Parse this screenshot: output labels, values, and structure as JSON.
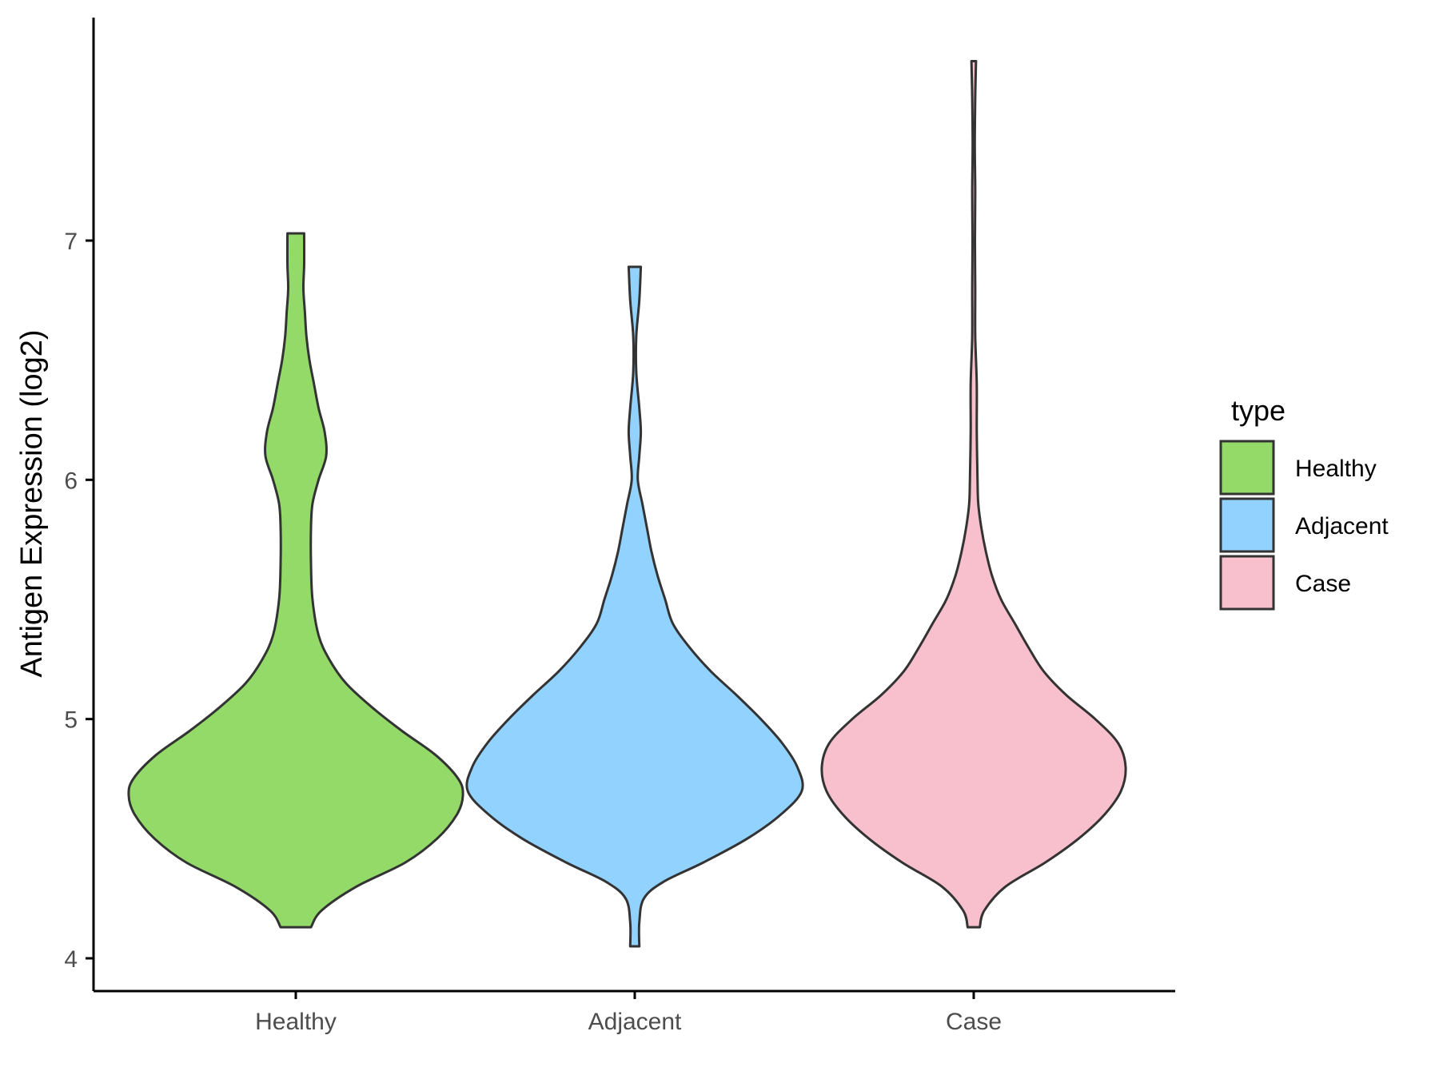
{
  "chart_data": {
    "type": "violin",
    "ylabel": "Antigen Expression (log2)",
    "xlabel": "",
    "ylim": [
      3.9,
      7.95
    ],
    "yticks": [
      4,
      5,
      6,
      7
    ],
    "categories": [
      "Healthy",
      "Adjacent",
      "Case"
    ],
    "legend": {
      "title": "type",
      "placement": "right",
      "entries": [
        "Healthy",
        "Adjacent",
        "Case"
      ]
    },
    "grid": false,
    "series": [
      {
        "name": "Healthy",
        "color": "#93DA69",
        "min": 4.13,
        "max": 7.03,
        "profile": [
          [
            4.13,
            0.1
          ],
          [
            4.2,
            0.17
          ],
          [
            4.3,
            0.4
          ],
          [
            4.4,
            0.72
          ],
          [
            4.5,
            0.93
          ],
          [
            4.6,
            1.06
          ],
          [
            4.68,
            1.1
          ],
          [
            4.75,
            1.07
          ],
          [
            4.85,
            0.92
          ],
          [
            4.95,
            0.7
          ],
          [
            5.05,
            0.5
          ],
          [
            5.15,
            0.33
          ],
          [
            5.25,
            0.22
          ],
          [
            5.35,
            0.15
          ],
          [
            5.5,
            0.11
          ],
          [
            5.65,
            0.1
          ],
          [
            5.8,
            0.1
          ],
          [
            5.9,
            0.11
          ],
          [
            6.0,
            0.15
          ],
          [
            6.1,
            0.2
          ],
          [
            6.2,
            0.19
          ],
          [
            6.3,
            0.15
          ],
          [
            6.4,
            0.12
          ],
          [
            6.5,
            0.09
          ],
          [
            6.6,
            0.07
          ],
          [
            6.7,
            0.06
          ],
          [
            6.8,
            0.05
          ],
          [
            6.9,
            0.055
          ],
          [
            7.03,
            0.055
          ]
        ]
      },
      {
        "name": "Adjacent",
        "color": "#92D2FE",
        "min": 4.05,
        "max": 6.89,
        "profile": [
          [
            4.05,
            0.03
          ],
          [
            4.15,
            0.03
          ],
          [
            4.25,
            0.06
          ],
          [
            4.32,
            0.19
          ],
          [
            4.4,
            0.45
          ],
          [
            4.5,
            0.74
          ],
          [
            4.6,
            0.96
          ],
          [
            4.7,
            1.1
          ],
          [
            4.8,
            1.07
          ],
          [
            4.9,
            0.97
          ],
          [
            5.0,
            0.83
          ],
          [
            5.1,
            0.67
          ],
          [
            5.2,
            0.5
          ],
          [
            5.3,
            0.36
          ],
          [
            5.4,
            0.25
          ],
          [
            5.5,
            0.2
          ],
          [
            5.6,
            0.15
          ],
          [
            5.7,
            0.11
          ],
          [
            5.8,
            0.08
          ],
          [
            5.9,
            0.05
          ],
          [
            6.0,
            0.02
          ],
          [
            6.1,
            0.03
          ],
          [
            6.2,
            0.04
          ],
          [
            6.3,
            0.03
          ],
          [
            6.45,
            0.01
          ],
          [
            6.6,
            0.01
          ],
          [
            6.75,
            0.03
          ],
          [
            6.89,
            0.04
          ]
        ]
      },
      {
        "name": "Case",
        "color": "#F7C0CC",
        "min": 4.13,
        "max": 7.75,
        "profile": [
          [
            4.13,
            0.04
          ],
          [
            4.2,
            0.07
          ],
          [
            4.3,
            0.21
          ],
          [
            4.4,
            0.47
          ],
          [
            4.5,
            0.69
          ],
          [
            4.6,
            0.86
          ],
          [
            4.7,
            0.97
          ],
          [
            4.8,
            1.0
          ],
          [
            4.9,
            0.95
          ],
          [
            5.0,
            0.8
          ],
          [
            5.1,
            0.61
          ],
          [
            5.2,
            0.46
          ],
          [
            5.3,
            0.36
          ],
          [
            5.4,
            0.27
          ],
          [
            5.5,
            0.18
          ],
          [
            5.6,
            0.12
          ],
          [
            5.7,
            0.08
          ],
          [
            5.8,
            0.05
          ],
          [
            5.9,
            0.03
          ],
          [
            6.0,
            0.025
          ],
          [
            6.2,
            0.02
          ],
          [
            6.4,
            0.02
          ],
          [
            6.6,
            0.01
          ],
          [
            6.8,
            0.01
          ],
          [
            7.0,
            0.008
          ],
          [
            7.2,
            0.01
          ],
          [
            7.4,
            0.007
          ],
          [
            7.6,
            0.01
          ],
          [
            7.75,
            0.015
          ]
        ]
      }
    ]
  }
}
